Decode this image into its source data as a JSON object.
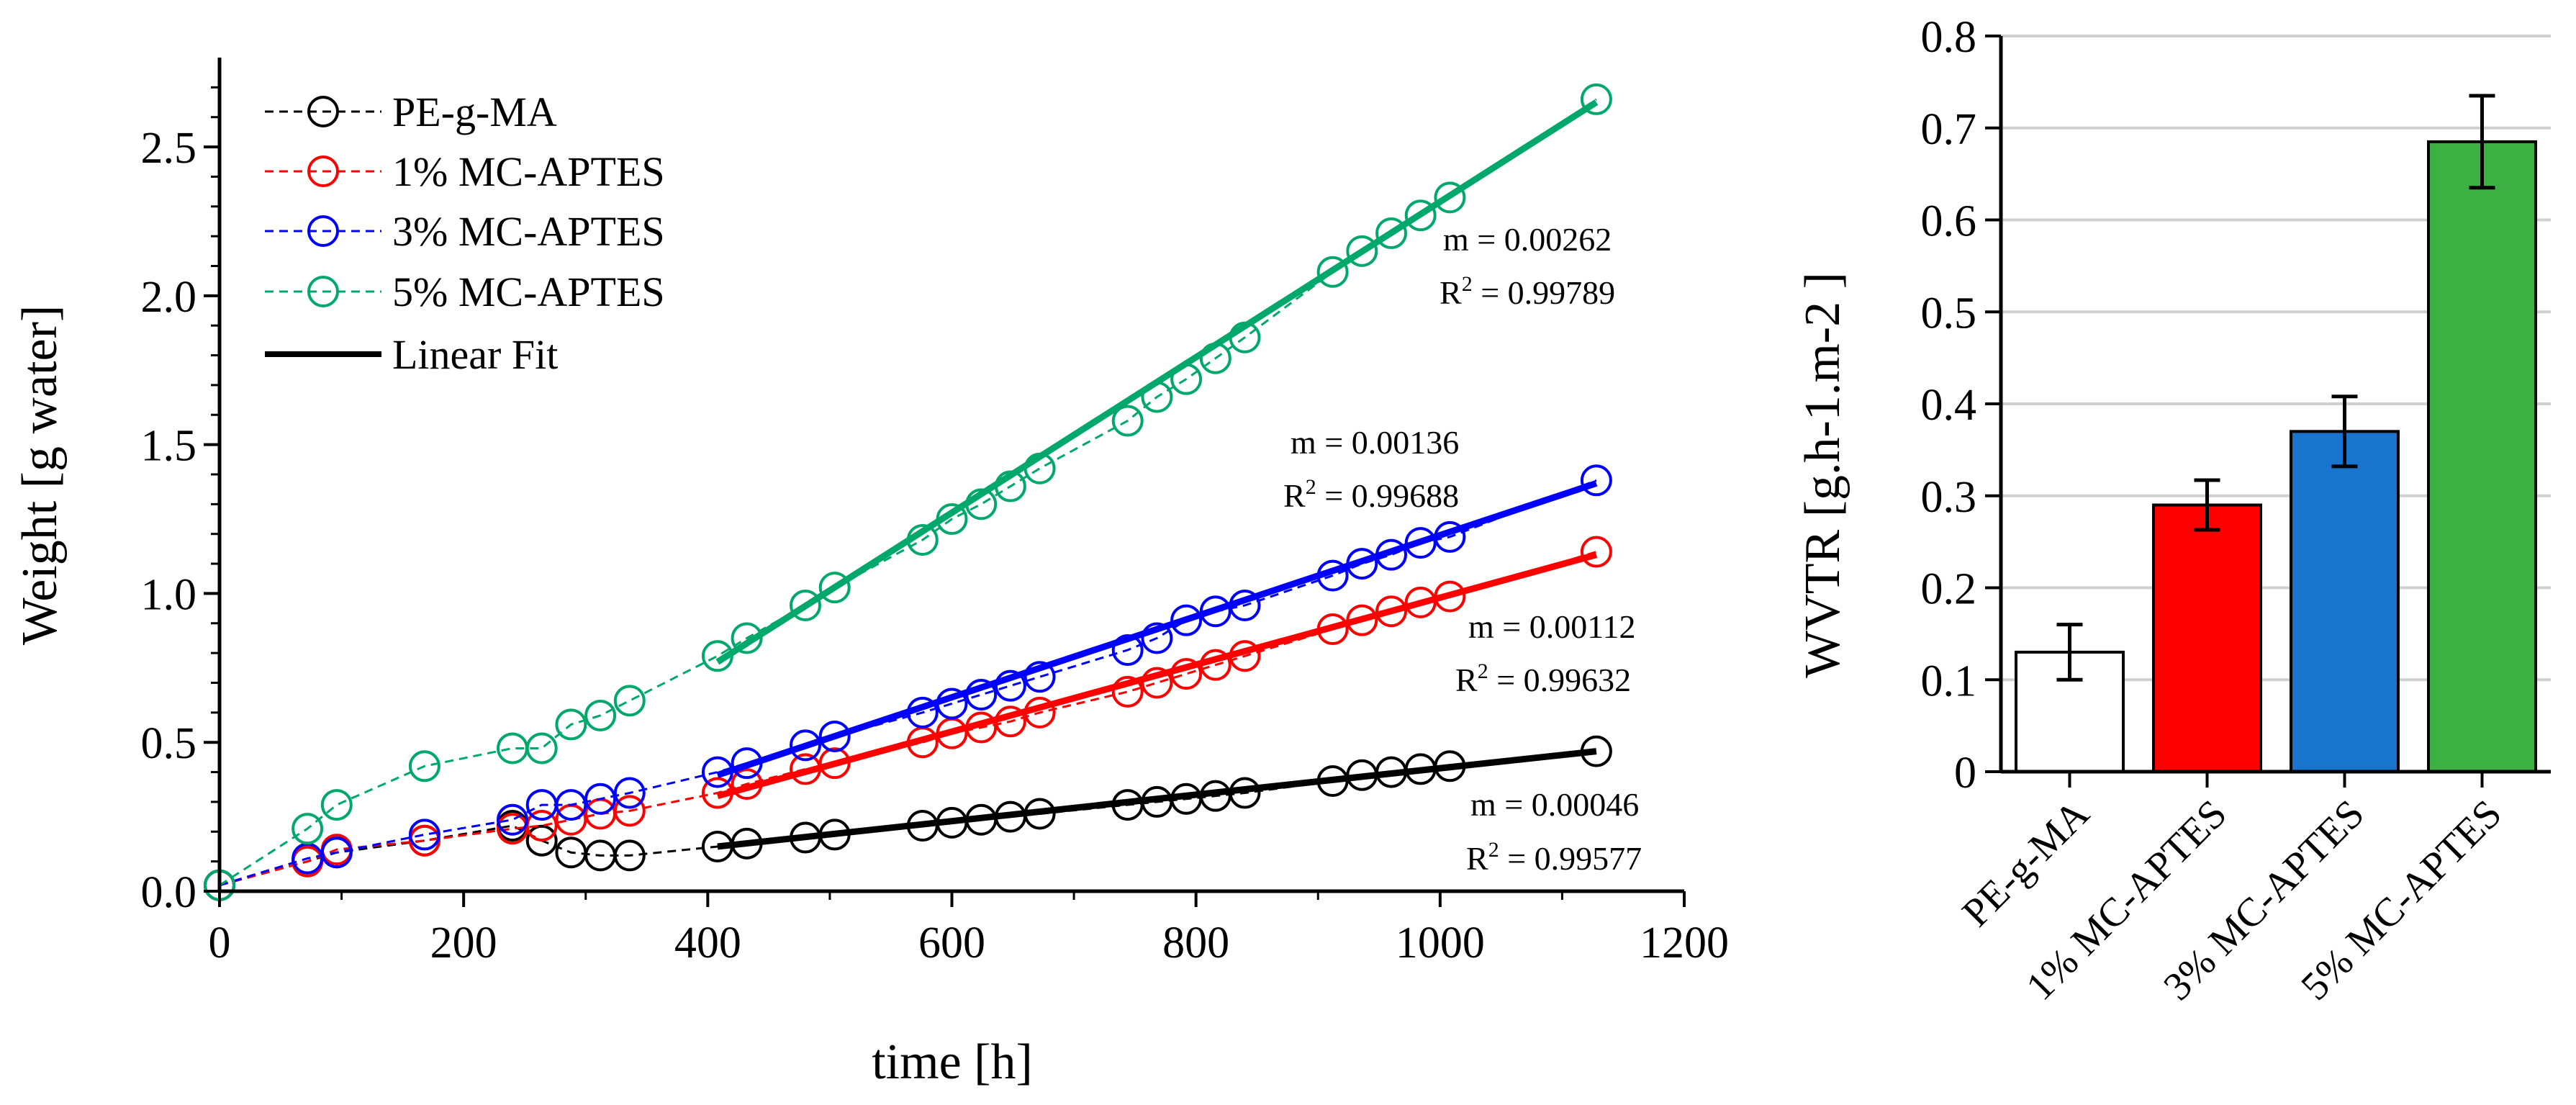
{
  "chart_data": [
    {
      "type": "scatter",
      "xlabel": "time [h]",
      "ylabel": "Weight [g water]",
      "xlim": [
        0,
        1200
      ],
      "ylim": [
        0,
        2.8
      ],
      "xticks": [
        "0",
        "200",
        "400",
        "600",
        "800",
        "1000",
        "1200"
      ],
      "yticks": [
        "0.0",
        "0.5",
        "1.0",
        "1.5",
        "2.0",
        "2.5"
      ],
      "legend": {
        "position": "top-left",
        "entries": [
          "PE-g-MA",
          "1% MC-APTES",
          "3% MC-APTES",
          "5% MC-APTES",
          "Linear Fit"
        ]
      },
      "colors": {
        "PE-g-MA": "#000000",
        "1% MC-APTES": "#ff0000",
        "3% MC-APTES": "#0000ff",
        "5% MC-APTES": "#00a86b",
        "axis": "#000000"
      },
      "series": [
        {
          "name": "PE-g-MA",
          "x": [
            0,
            72,
            96,
            168,
            240,
            264,
            288,
            312,
            336,
            408,
            432,
            480,
            504,
            576,
            600,
            624,
            648,
            672,
            744,
            768,
            792,
            816,
            840,
            912,
            936,
            960,
            984,
            1008,
            1128
          ],
          "y": [
            0.02,
            0.1,
            0.13,
            0.17,
            0.22,
            0.17,
            0.13,
            0.12,
            0.12,
            0.15,
            0.16,
            0.18,
            0.19,
            0.22,
            0.23,
            0.24,
            0.25,
            0.26,
            0.29,
            0.3,
            0.31,
            0.32,
            0.33,
            0.37,
            0.39,
            0.4,
            0.41,
            0.42,
            0.47
          ],
          "fit": {
            "x": [
              408,
              1128
            ],
            "y": [
              0.15,
              0.47
            ]
          },
          "annotation": {
            "slope": "m = 0.00046",
            "r2_prefix": "R",
            "r2_exp": "2",
            "r2_value": " = 0.99577"
          }
        },
        {
          "name": "1% MC-APTES",
          "x": [
            0,
            72,
            96,
            168,
            240,
            264,
            288,
            312,
            336,
            408,
            432,
            480,
            504,
            576,
            600,
            624,
            648,
            672,
            744,
            768,
            792,
            816,
            840,
            912,
            936,
            960,
            984,
            1008,
            1128
          ],
          "y": [
            0.02,
            0.1,
            0.14,
            0.17,
            0.21,
            0.22,
            0.24,
            0.26,
            0.27,
            0.33,
            0.36,
            0.41,
            0.43,
            0.5,
            0.53,
            0.55,
            0.57,
            0.6,
            0.67,
            0.7,
            0.73,
            0.76,
            0.79,
            0.88,
            0.91,
            0.94,
            0.97,
            0.99,
            1.14
          ],
          "fit": {
            "x": [
              408,
              1128
            ],
            "y": [
              0.32,
              1.13
            ]
          },
          "annotation": {
            "slope": "m = 0.00112",
            "r2_prefix": "R",
            "r2_exp": "2",
            "r2_value": " = 0.99632"
          }
        },
        {
          "name": "3% MC-APTES",
          "x": [
            0,
            72,
            96,
            168,
            240,
            264,
            288,
            312,
            336,
            408,
            432,
            480,
            504,
            576,
            600,
            624,
            648,
            672,
            744,
            768,
            792,
            816,
            840,
            912,
            936,
            960,
            984,
            1008,
            1128
          ],
          "y": [
            0.02,
            0.11,
            0.13,
            0.19,
            0.24,
            0.29,
            0.29,
            0.31,
            0.33,
            0.4,
            0.43,
            0.49,
            0.52,
            0.6,
            0.63,
            0.66,
            0.69,
            0.72,
            0.81,
            0.85,
            0.91,
            0.94,
            0.96,
            1.06,
            1.1,
            1.13,
            1.17,
            1.19,
            1.38
          ],
          "fit": {
            "x": [
              408,
              1128
            ],
            "y": [
              0.39,
              1.37
            ]
          },
          "annotation": {
            "slope": "m = 0.00136",
            "r2_prefix": "R",
            "r2_exp": "2",
            "r2_value": " = 0.99688"
          }
        },
        {
          "name": "5% MC-APTES",
          "x": [
            0,
            72,
            96,
            168,
            240,
            264,
            288,
            312,
            336,
            408,
            432,
            480,
            504,
            576,
            600,
            624,
            648,
            672,
            744,
            768,
            792,
            816,
            840,
            912,
            936,
            960,
            984,
            1008,
            1128
          ],
          "y": [
            0.02,
            0.21,
            0.29,
            0.42,
            0.48,
            0.48,
            0.56,
            0.59,
            0.64,
            0.79,
            0.85,
            0.96,
            1.02,
            1.18,
            1.25,
            1.3,
            1.36,
            1.42,
            1.58,
            1.66,
            1.72,
            1.79,
            1.86,
            2.08,
            2.15,
            2.21,
            2.27,
            2.33,
            2.66
          ],
          "fit": {
            "x": [
              408,
              1128
            ],
            "y": [
              0.77,
              2.65
            ]
          },
          "annotation": {
            "slope": "m = 0.00262",
            "r2_prefix": "R",
            "r2_exp": "2",
            "r2_value": " = 0.99789"
          }
        }
      ]
    },
    {
      "type": "bar",
      "ylabel": "WVTR [g.h-1.m-2 ]",
      "ylim": [
        0,
        0.8
      ],
      "yticks": [
        "0",
        "0.1",
        "0.2",
        "0.3",
        "0.4",
        "0.5",
        "0.6",
        "0.7",
        "0.8"
      ],
      "grid": true,
      "categories": [
        "PE-g-MA",
        "1% MC-APTES",
        "3% MC-APTES",
        "5% MC-APTES"
      ],
      "values": [
        0.13,
        0.29,
        0.37,
        0.685
      ],
      "errors": [
        0.03,
        0.027,
        0.038,
        0.05
      ],
      "colors": [
        "#ffffff",
        "#ff0000",
        "#1874cd",
        "#3cb043"
      ]
    }
  ]
}
